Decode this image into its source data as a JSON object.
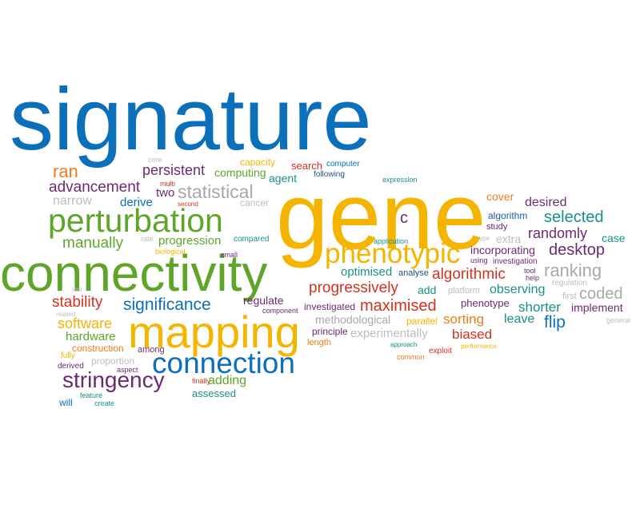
{
  "words": [
    "signature",
    "gene",
    "connectivity",
    "mapping",
    "perturbation",
    "phenotypic",
    "connection",
    "stringency",
    "persistent",
    "capacity",
    "ran",
    "computing",
    "core",
    "search",
    "computer",
    "agent",
    "following",
    "multi",
    "advancement",
    "two",
    "statistical",
    "expression",
    "cover",
    "narrow",
    "derive",
    "cancer",
    "c",
    "desired",
    "selected",
    "algorithm",
    "manually",
    "rate",
    "progression",
    "compared",
    "study",
    "randomly",
    "extra",
    "case",
    "type",
    "desktop",
    "biological",
    "small",
    "application",
    "incorporating",
    "investigation",
    "using",
    "ranking",
    "optimised",
    "analyse",
    "algorithmic",
    "tool",
    "help",
    "regulation",
    "progressively",
    "add",
    "platform",
    "observing",
    "test",
    "coded",
    "first",
    "stability",
    "significance",
    "regulate",
    "investigated",
    "maximised",
    "phenotype",
    "shorter",
    "implement",
    "related",
    "component",
    "methodological",
    "parallel",
    "software",
    "leave",
    "general",
    "flip",
    "hardware",
    "principle",
    "experimentally",
    "sorting",
    "construction",
    "biased",
    "length",
    "among",
    "approach",
    "performance",
    "proportion",
    "fully",
    "exploit",
    "derived",
    "common",
    "aspect",
    "finally",
    "adding",
    "assessed",
    "feature",
    "will",
    "create",
    "second"
  ]
}
